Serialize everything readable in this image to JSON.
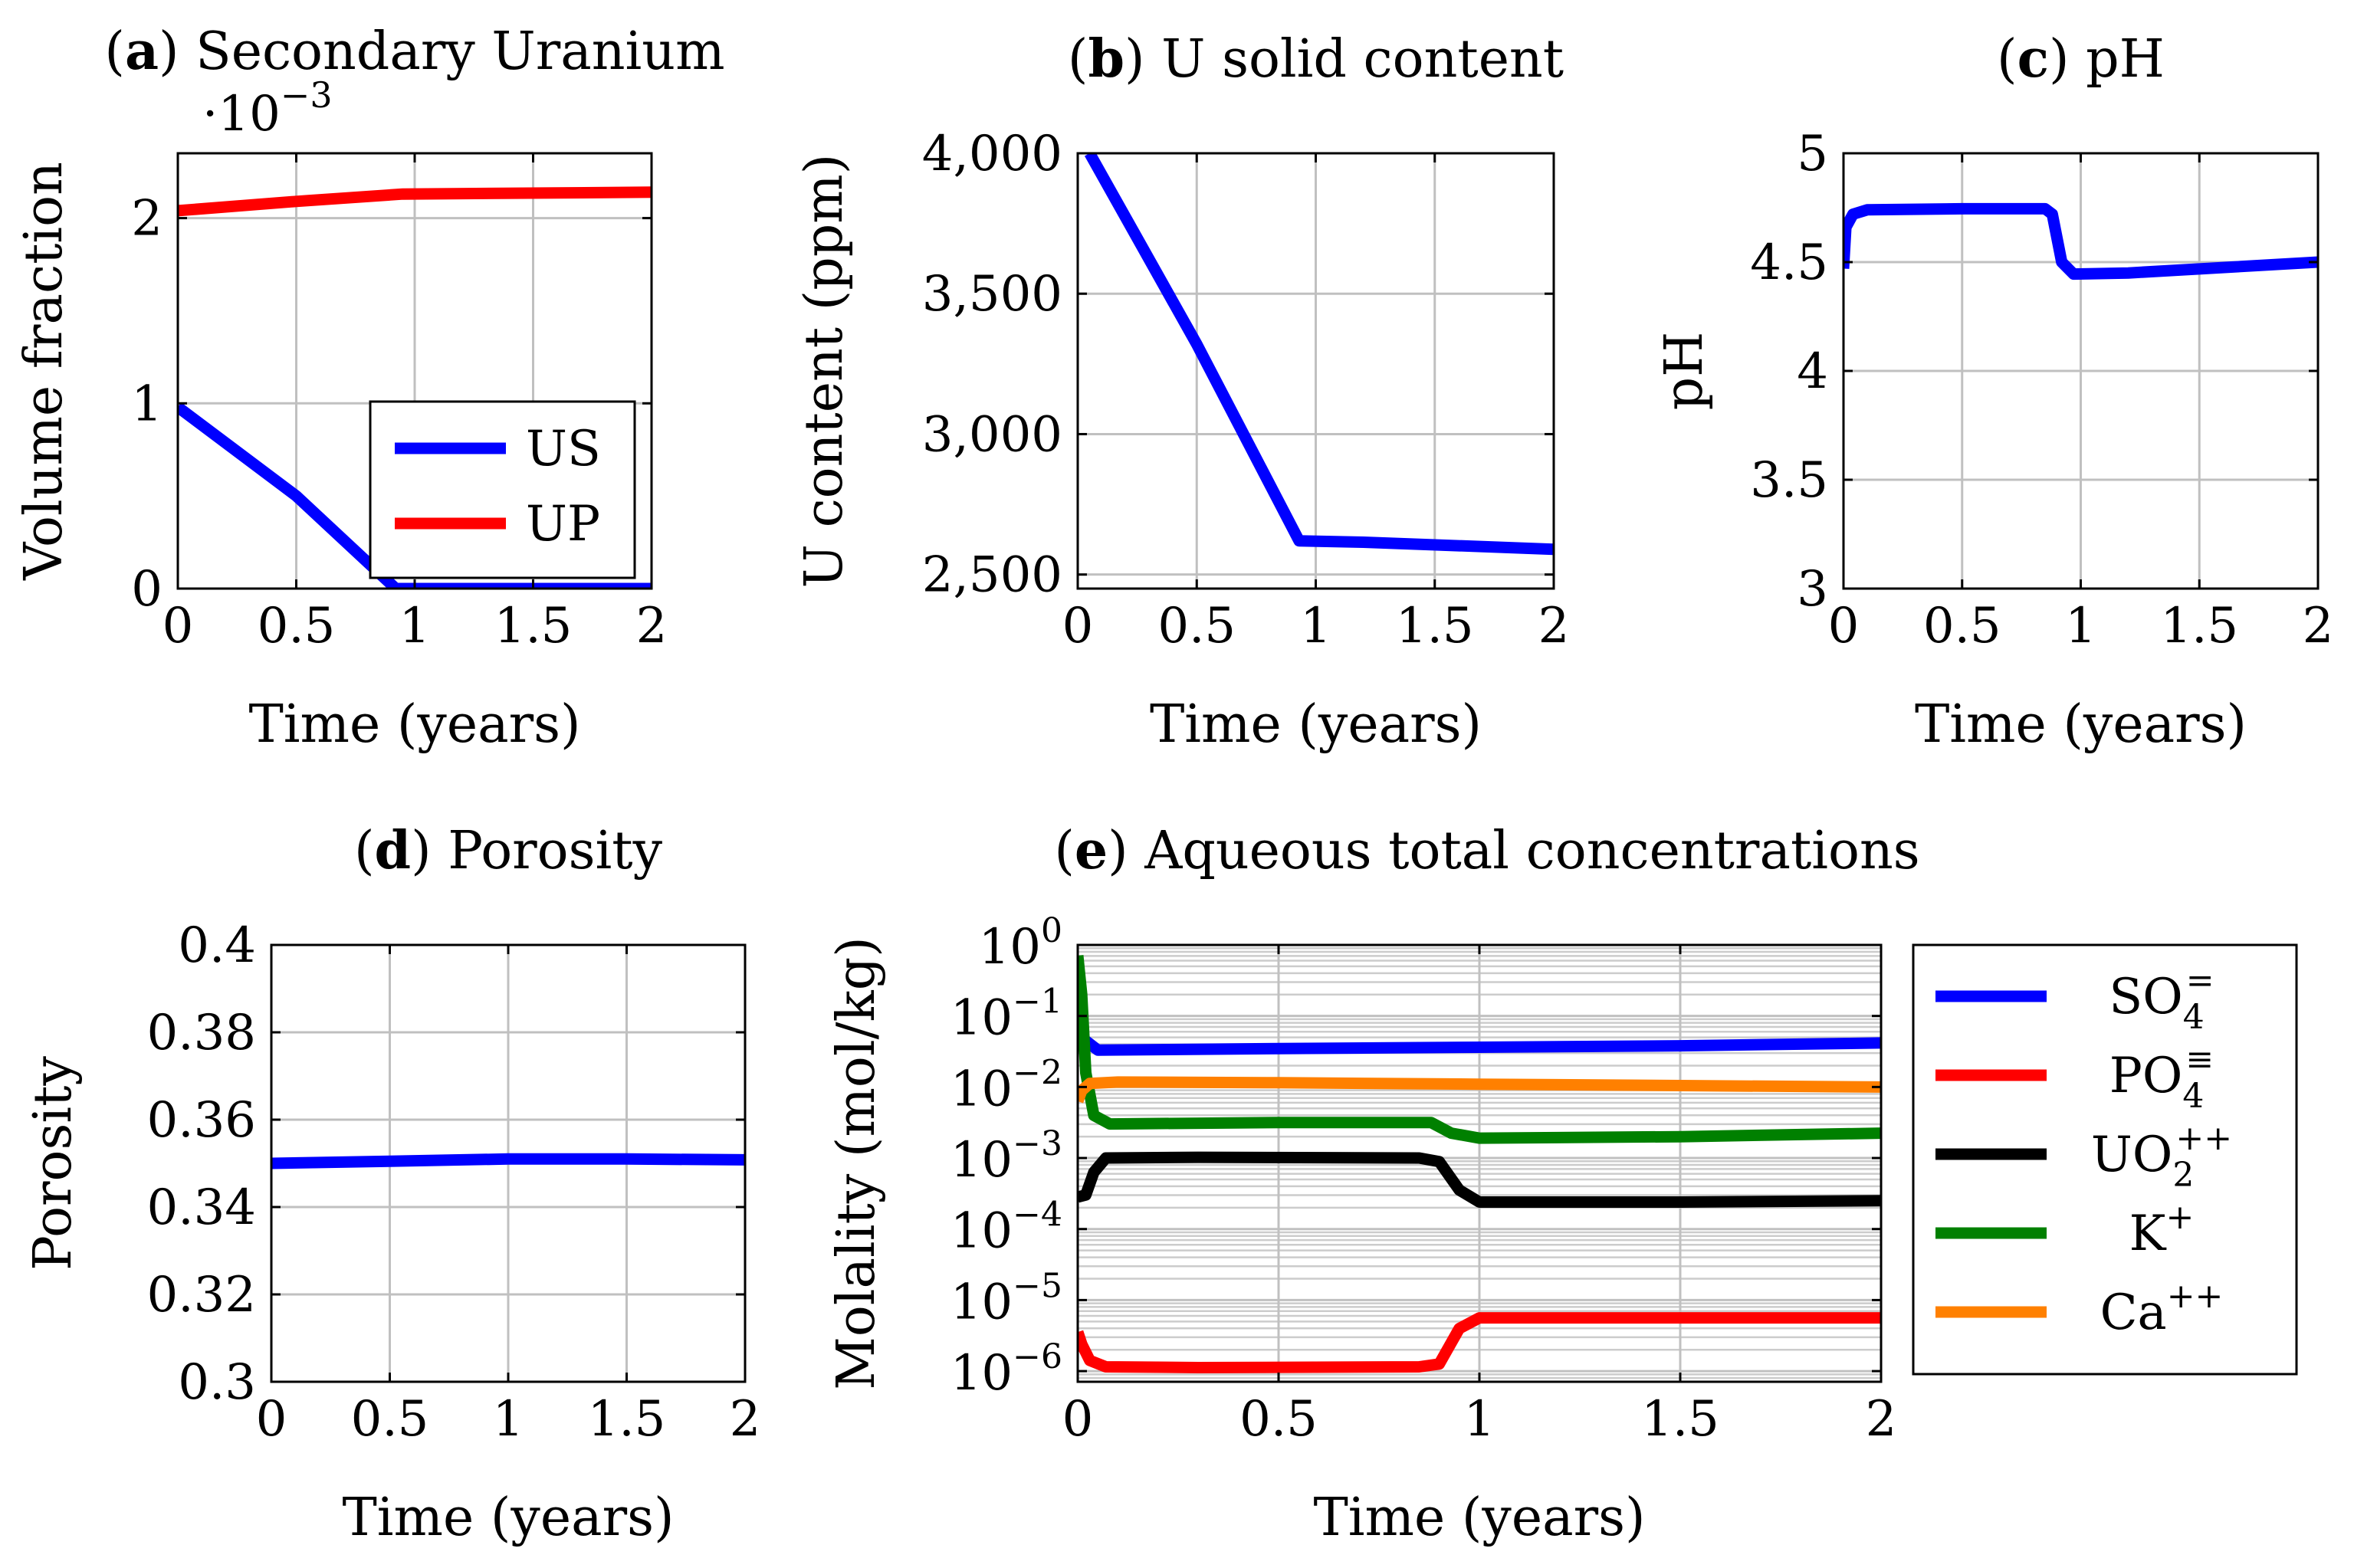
{
  "chart_data": [
    {
      "id": "a",
      "type": "line",
      "title_bold": "a",
      "title": "Secondary Uranium",
      "xlabel": "Time (years)",
      "ylabel": "Volume fraction",
      "scale_note": "·10",
      "scale_exp": "−3",
      "xlim": [
        0,
        2
      ],
      "ylim": [
        0,
        2.35
      ],
      "xticks": [
        0,
        0.5,
        1,
        1.5,
        2
      ],
      "xtick_labels": [
        "0",
        "0.5",
        "1",
        "1.5",
        "2"
      ],
      "yticks": [
        0,
        1,
        2
      ],
      "ytick_labels": [
        "0",
        "1",
        "2"
      ],
      "legend": "inside-bottom-right",
      "series": [
        {
          "name": "US",
          "color": "#0000ff",
          "points": [
            [
              0,
              0.98
            ],
            [
              0.5,
              0.5
            ],
            [
              0.92,
              0.0
            ],
            [
              2,
              0.0
            ]
          ]
        },
        {
          "name": "UP",
          "color": "#ff0000",
          "points": [
            [
              0,
              2.04
            ],
            [
              0.5,
              2.09
            ],
            [
              0.95,
              2.13
            ],
            [
              2,
              2.14
            ]
          ]
        }
      ]
    },
    {
      "id": "b",
      "type": "line",
      "title_bold": "b",
      "title": "U solid content",
      "xlabel": "Time (years)",
      "ylabel": "U content (ppm)",
      "xlim": [
        0,
        2
      ],
      "ylim": [
        2450,
        4000
      ],
      "xticks": [
        0,
        0.5,
        1,
        1.5,
        2
      ],
      "xtick_labels": [
        "0",
        "0.5",
        "1",
        "1.5",
        "2"
      ],
      "yticks": [
        2500,
        3000,
        3500,
        4000
      ],
      "ytick_labels": [
        "2,500",
        "3,000",
        "3,500",
        "4,000"
      ],
      "series": [
        {
          "name": "U",
          "color": "#0000ff",
          "points": [
            [
              0.05,
              4000
            ],
            [
              0.5,
              3320
            ],
            [
              0.93,
              2620
            ],
            [
              1.2,
              2615
            ],
            [
              2,
              2590
            ]
          ]
        }
      ]
    },
    {
      "id": "c",
      "type": "line",
      "title_bold": "c",
      "title": "pH",
      "xlabel": "Time (years)",
      "ylabel": "pH",
      "xlim": [
        0,
        2
      ],
      "ylim": [
        3,
        5
      ],
      "xticks": [
        0,
        0.5,
        1,
        1.5,
        2
      ],
      "xtick_labels": [
        "0",
        "0.5",
        "1",
        "1.5",
        "2"
      ],
      "yticks": [
        3,
        3.5,
        4,
        4.5,
        5
      ],
      "ytick_labels": [
        "3",
        "3.5",
        "4",
        "4.5",
        "5"
      ],
      "series": [
        {
          "name": "pH",
          "color": "#0000ff",
          "points": [
            [
              0.0,
              4.47
            ],
            [
              0.01,
              4.66
            ],
            [
              0.04,
              4.72
            ],
            [
              0.1,
              4.74
            ],
            [
              0.5,
              4.745
            ],
            [
              0.85,
              4.745
            ],
            [
              0.88,
              4.72
            ],
            [
              0.92,
              4.5
            ],
            [
              0.97,
              4.445
            ],
            [
              1.2,
              4.45
            ],
            [
              2,
              4.5
            ]
          ]
        }
      ]
    },
    {
      "id": "d",
      "type": "line",
      "title_bold": "d",
      "title": "Porosity",
      "xlabel": "Time (years)",
      "ylabel": "Porosity",
      "xlim": [
        0,
        2
      ],
      "ylim": [
        0.3,
        0.4
      ],
      "xticks": [
        0,
        0.5,
        1,
        1.5,
        2
      ],
      "xtick_labels": [
        "0",
        "0.5",
        "1",
        "1.5",
        "2"
      ],
      "yticks": [
        0.3,
        0.32,
        0.34,
        0.36,
        0.38,
        0.4
      ],
      "ytick_labels": [
        "0.3",
        "0.32",
        "0.34",
        "0.36",
        "0.38",
        "0.4"
      ],
      "series": [
        {
          "name": "Porosity",
          "color": "#0000ff",
          "points": [
            [
              0,
              0.35
            ],
            [
              0.5,
              0.3505
            ],
            [
              1,
              0.351
            ],
            [
              1.5,
              0.351
            ],
            [
              2,
              0.3508
            ]
          ]
        }
      ]
    },
    {
      "id": "e",
      "type": "line",
      "yscale": "log",
      "title_bold": "e",
      "title": "Aqueous total concentrations",
      "xlabel": "Time (years)",
      "ylabel": "Molality (mol/kg)",
      "xlim": [
        0,
        2
      ],
      "ylim_log10": [
        -6.15,
        0
      ],
      "xticks": [
        0,
        0.5,
        1,
        1.5,
        2
      ],
      "xtick_labels": [
        "0",
        "0.5",
        "1",
        "1.5",
        "2"
      ],
      "yticks_exp": [
        0,
        -1,
        -2,
        -3,
        -4,
        -5,
        -6
      ],
      "ytick_base": "10",
      "ytick_exp_labels": [
        "0",
        "−1",
        "−2",
        "−3",
        "−4",
        "−5",
        "−6"
      ],
      "legend": "outside-right",
      "series": [
        {
          "name": "SO",
          "sub": "4",
          "sup": "=",
          "color": "#0000ff",
          "points": [
            [
              0.0,
              -1.2
            ],
            [
              0.02,
              -1.35
            ],
            [
              0.05,
              -1.48
            ],
            [
              0.5,
              -1.46
            ],
            [
              1.0,
              -1.44
            ],
            [
              1.5,
              -1.42
            ],
            [
              2.0,
              -1.38
            ]
          ]
        },
        {
          "name": "PO",
          "sub": "4",
          "sup": "≡",
          "color": "#ff0000",
          "points": [
            [
              0.0,
              -5.45
            ],
            [
              0.01,
              -5.62
            ],
            [
              0.03,
              -5.85
            ],
            [
              0.07,
              -5.94
            ],
            [
              0.3,
              -5.95
            ],
            [
              0.85,
              -5.94
            ],
            [
              0.9,
              -5.9
            ],
            [
              0.95,
              -5.4
            ],
            [
              1.0,
              -5.25
            ],
            [
              1.5,
              -5.25
            ],
            [
              2.0,
              -5.25
            ]
          ]
        },
        {
          "name": "UO",
          "sub": "2",
          "sup": "++",
          "color": "#000000",
          "points": [
            [
              0.0,
              -3.55
            ],
            [
              0.02,
              -3.52
            ],
            [
              0.04,
              -3.2
            ],
            [
              0.07,
              -3.0
            ],
            [
              0.3,
              -2.99
            ],
            [
              0.85,
              -3.0
            ],
            [
              0.9,
              -3.05
            ],
            [
              0.95,
              -3.45
            ],
            [
              1.0,
              -3.62
            ],
            [
              1.5,
              -3.62
            ],
            [
              2.0,
              -3.6
            ]
          ]
        },
        {
          "name": "K",
          "sub": "",
          "sup": "+",
          "color": "#008000",
          "points": [
            [
              0.0,
              -0.15
            ],
            [
              0.01,
              -0.7
            ],
            [
              0.02,
              -1.8
            ],
            [
              0.04,
              -2.4
            ],
            [
              0.08,
              -2.52
            ],
            [
              0.5,
              -2.5
            ],
            [
              0.88,
              -2.5
            ],
            [
              0.93,
              -2.65
            ],
            [
              1.0,
              -2.72
            ],
            [
              1.5,
              -2.7
            ],
            [
              2.0,
              -2.65
            ]
          ]
        },
        {
          "name": "Ca",
          "sub": "",
          "sup": "++",
          "color": "#ff8000",
          "points": [
            [
              0.0,
              -2.2
            ],
            [
              0.01,
              -2.05
            ],
            [
              0.03,
              -1.95
            ],
            [
              0.1,
              -1.93
            ],
            [
              0.5,
              -1.94
            ],
            [
              1.0,
              -1.96
            ],
            [
              1.5,
              -1.98
            ],
            [
              2.0,
              -2.0
            ]
          ]
        }
      ]
    }
  ]
}
